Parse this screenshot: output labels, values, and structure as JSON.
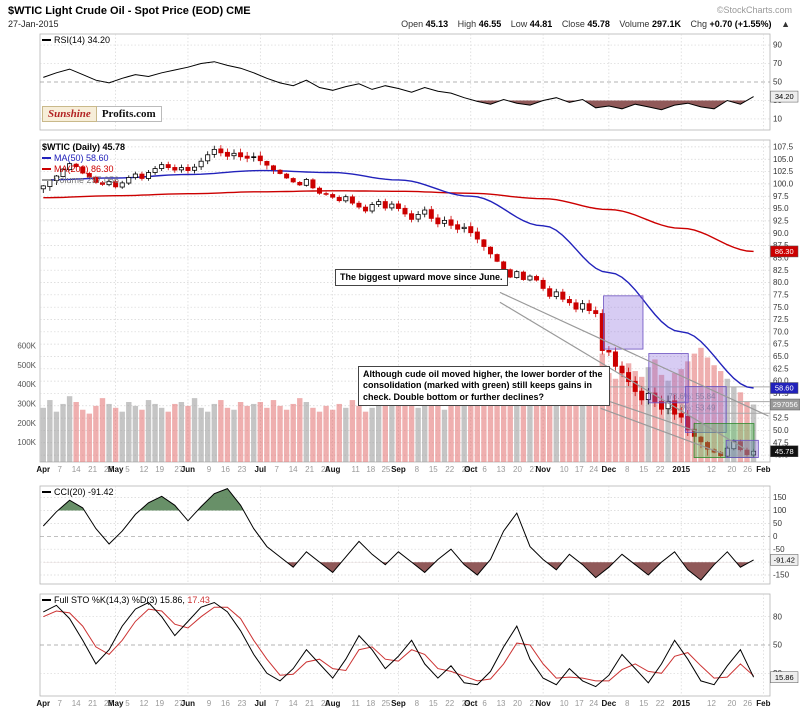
{
  "header": {
    "symbol_title": "$WTIC Light Crude Oil - Spot Price (EOD) CME",
    "copyright": "©StockCharts.com",
    "date": "27-Jan-2015",
    "quote": [
      {
        "label": "Open",
        "value": "45.13"
      },
      {
        "label": "High",
        "value": "46.55"
      },
      {
        "label": "Low",
        "value": "44.81"
      },
      {
        "label": "Close",
        "value": "45.78"
      },
      {
        "label": "Volume",
        "value": "297.1K"
      },
      {
        "label": "Chg",
        "value": "+0.70 (+1.55%)"
      }
    ],
    "chg_arrow": "▲"
  },
  "logo": {
    "line1": "Sunshine",
    "line2": "Profits.com"
  },
  "panels": {
    "rsi": {
      "legend": "RSI(14) 34.20",
      "last": "34.20"
    },
    "price": {
      "legend_symbol": "$WTIC (Daily) 45.78",
      "legend_ma50": "MA(50) 58.60",
      "legend_ma200": "MA(200) 86.30",
      "legend_volume": "Volume 297,056",
      "last": "45.78",
      "ma50_last": "58.60",
      "ma200_last": "86.30",
      "volume_last": "297056"
    },
    "cci": {
      "legend": "CCI(20) -91.42",
      "last": "-91.42"
    },
    "sto": {
      "legend": "Full STO %K(14,3) %D(3) 15.86,",
      "legend_d": "17.43",
      "last": "15.86"
    }
  },
  "annotations": {
    "box1": "The biggest upward move since June.",
    "box2": "Although cude oil moved higher, the lower border of the consolidation (marked with green) still keeps gains in check. Double bottom or further declines?"
  },
  "chart_data": {
    "type": "candlestick-multi-panel",
    "title": "$WTIC Light Crude Oil - Spot Price (EOD) CME",
    "x_slots": 111,
    "xticks": [
      [
        "Apr",
        0,
        1
      ],
      [
        "7",
        2.5,
        0
      ],
      [
        "14",
        5,
        0
      ],
      [
        "21",
        7.5,
        0
      ],
      [
        "28",
        9.9,
        0
      ],
      [
        "May",
        11,
        1
      ],
      [
        "5",
        12.8,
        0
      ],
      [
        "12",
        15.3,
        0
      ],
      [
        "19",
        17.7,
        0
      ],
      [
        "27",
        20.6,
        0
      ],
      [
        "Jun",
        22,
        1
      ],
      [
        "9",
        25.2,
        0
      ],
      [
        "16",
        27.7,
        0
      ],
      [
        "23",
        30.2,
        0
      ],
      [
        "Jul",
        33,
        1
      ],
      [
        "7",
        35.5,
        0
      ],
      [
        "14",
        38,
        0
      ],
      [
        "21",
        40.5,
        0
      ],
      [
        "28",
        42.9,
        0
      ],
      [
        "Aug",
        44,
        1
      ],
      [
        "11",
        47.5,
        0
      ],
      [
        "18",
        49.8,
        0
      ],
      [
        "25",
        52.1,
        0
      ],
      [
        "Sep",
        54,
        1
      ],
      [
        "8",
        56.8,
        0
      ],
      [
        "15",
        59.3,
        0
      ],
      [
        "22",
        61.8,
        0
      ],
      [
        "29",
        64.3,
        0
      ],
      [
        "Oct",
        65,
        1
      ],
      [
        "6",
        67.1,
        0
      ],
      [
        "13",
        69.6,
        0
      ],
      [
        "20",
        72.1,
        0
      ],
      [
        "27",
        74.6,
        0
      ],
      [
        "Nov",
        76,
        1
      ],
      [
        "10",
        79.2,
        0
      ],
      [
        "17",
        81.5,
        0
      ],
      [
        "24",
        83.7,
        0
      ],
      [
        "Dec",
        86,
        1
      ],
      [
        "8",
        88.8,
        0
      ],
      [
        "15",
        91.3,
        0
      ],
      [
        "22",
        93.8,
        0
      ],
      [
        "2015",
        97,
        1
      ],
      [
        "12",
        101.6,
        0
      ],
      [
        "20",
        104.7,
        0
      ],
      [
        "26",
        107.1,
        0
      ],
      [
        "Feb",
        109.5,
        1
      ]
    ],
    "price": {
      "ylim": [
        43.6,
        108.9
      ],
      "grid_min": 45,
      "grid_max": 107.5,
      "grid_step": 2.5,
      "first_open": 99.0,
      "closes": [
        99.6,
        100.8,
        101.6,
        103.0,
        104.1,
        103.5,
        102.2,
        101.4,
        100.3,
        99.9,
        100.5,
        99.4,
        100.2,
        101.3,
        102.0,
        101.1,
        102.3,
        103.1,
        103.9,
        103.3,
        102.8,
        103.3,
        102.7,
        103.4,
        104.6,
        105.9,
        107.0,
        106.3,
        105.6,
        106.2,
        105.5,
        105.2,
        105.5,
        104.7,
        103.8,
        102.9,
        102.1,
        101.2,
        100.4,
        99.8,
        100.9,
        99.2,
        98.1,
        97.9,
        97.3,
        96.6,
        97.4,
        96.1,
        95.3,
        94.5,
        95.8,
        96.4,
        95.1,
        95.9,
        95.0,
        93.9,
        92.8,
        93.8,
        94.7,
        93.0,
        91.9,
        92.6,
        91.6,
        90.8,
        91.2,
        90.1,
        88.8,
        87.3,
        85.8,
        84.3,
        82.7,
        81.1,
        82.2,
        80.6,
        81.3,
        80.5,
        78.8,
        77.2,
        78.1,
        76.6,
        75.9,
        74.6,
        75.7,
        74.3,
        73.7,
        66.2,
        65.9,
        63.0,
        61.7,
        59.9,
        57.9,
        56.2,
        57.5,
        55.8,
        54.3,
        55.9,
        53.3,
        52.7,
        50.1,
        48.8,
        47.7,
        46.2,
        45.6,
        44.9,
        46.4,
        47.8,
        46.1,
        45.1,
        45.78
      ],
      "ma50": {
        "idx": [
          0,
          11,
          22,
          33,
          44,
          54,
          65,
          76,
          86,
          97,
          108
        ],
        "values": [
          100.8,
          101.2,
          101.9,
          102.7,
          102.3,
          100.8,
          97.5,
          91.5,
          82.0,
          70.0,
          58.6
        ]
      },
      "ma200": {
        "idx": [
          0,
          11,
          22,
          33,
          44,
          54,
          65,
          76,
          86,
          97,
          108
        ],
        "values": [
          97.2,
          97.6,
          98.0,
          98.4,
          98.6,
          98.5,
          98.1,
          97.0,
          94.8,
          91.0,
          86.3
        ]
      }
    },
    "volume": {
      "axis_max_k": 620,
      "last_k": 297,
      "ticks_k": [
        600,
        500,
        400,
        300,
        200,
        100
      ],
      "values_k": [
        280,
        320,
        260,
        300,
        340,
        310,
        270,
        250,
        290,
        330,
        300,
        280,
        260,
        310,
        290,
        270,
        320,
        300,
        280,
        260,
        300,
        310,
        290,
        330,
        280,
        260,
        300,
        320,
        280,
        270,
        310,
        290,
        300,
        310,
        280,
        320,
        290,
        270,
        300,
        330,
        310,
        280,
        260,
        290,
        270,
        300,
        280,
        320,
        290,
        260,
        280,
        310,
        300,
        290,
        320,
        340,
        300,
        280,
        310,
        330,
        290,
        270,
        300,
        320,
        310,
        350,
        380,
        420,
        390,
        360,
        400,
        430,
        370,
        340,
        380,
        360,
        390,
        420,
        380,
        400,
        370,
        410,
        390,
        440,
        480,
        560,
        460,
        430,
        480,
        510,
        470,
        440,
        490,
        530,
        450,
        420,
        460,
        480,
        520,
        560,
        590,
        540,
        500,
        470,
        430,
        390,
        360,
        310,
        297
      ]
    },
    "rsi": {
      "step": 2,
      "gridlines": [
        90,
        70,
        50,
        30,
        10
      ],
      "fill_below": 30,
      "values": [
        55,
        60,
        64,
        58,
        52,
        49,
        54,
        58,
        56,
        60,
        63,
        66,
        70,
        72,
        68,
        65,
        60,
        54,
        49,
        46,
        52,
        44,
        41,
        45,
        48,
        42,
        46,
        43,
        39,
        44,
        40,
        38,
        33,
        29,
        26,
        31,
        27,
        25,
        30,
        33,
        28,
        31,
        22,
        24,
        21,
        26,
        23,
        20,
        25,
        27,
        23,
        21,
        30,
        26,
        34.2
      ]
    },
    "cci": {
      "step": 2,
      "gridlines": [
        150,
        100,
        50,
        0,
        -50,
        -100,
        -150
      ],
      "fill_above": 100,
      "fill_below": -100,
      "values": [
        40,
        95,
        140,
        110,
        30,
        -30,
        20,
        85,
        130,
        155,
        120,
        60,
        115,
        165,
        185,
        120,
        30,
        -40,
        -80,
        -120,
        -60,
        -100,
        -140,
        -80,
        -20,
        -70,
        -110,
        -60,
        -100,
        -140,
        -90,
        -50,
        -110,
        -150,
        -90,
        20,
        90,
        -40,
        -90,
        -130,
        -70,
        -110,
        -160,
        -120,
        -70,
        -110,
        -150,
        -100,
        -60,
        -130,
        -170,
        -110,
        -60,
        -120,
        -91.42
      ]
    },
    "sto": {
      "step": 2,
      "gridlines": [
        80,
        50,
        20
      ],
      "k": [
        85,
        92,
        78,
        55,
        30,
        45,
        70,
        88,
        95,
        80,
        60,
        75,
        90,
        95,
        85,
        65,
        40,
        20,
        12,
        25,
        45,
        30,
        15,
        35,
        60,
        45,
        25,
        38,
        55,
        30,
        15,
        28,
        10,
        8,
        22,
        48,
        70,
        35,
        15,
        8,
        25,
        12,
        6,
        18,
        40,
        25,
        10,
        30,
        55,
        35,
        12,
        8,
        28,
        45,
        15.86
      ],
      "d": [
        80,
        86,
        84,
        70,
        48,
        40,
        55,
        75,
        88,
        86,
        72,
        68,
        80,
        90,
        90,
        78,
        55,
        35,
        18,
        19,
        32,
        35,
        25,
        23,
        45,
        48,
        35,
        33,
        45,
        40,
        25,
        22,
        17,
        12,
        14,
        30,
        52,
        50,
        30,
        15,
        16,
        15,
        12,
        12,
        24,
        30,
        22,
        20,
        38,
        42,
        28,
        15,
        16,
        30,
        17.43
      ]
    },
    "boxes": [
      {
        "x0": 0.772,
        "x1": 0.826,
        "p0": 66.5,
        "p1": 77.3,
        "color": "purple"
      },
      {
        "x0": 0.834,
        "x1": 0.888,
        "p0": 55.6,
        "p1": 65.6,
        "color": "purple"
      },
      {
        "x0": 0.884,
        "x1": 0.94,
        "p0": 49.6,
        "p1": 58.9,
        "color": "purple"
      },
      {
        "x0": 0.896,
        "x1": 0.978,
        "p0": 44.5,
        "p1": 51.4,
        "color": "green"
      },
      {
        "x0": 0.94,
        "x1": 0.984,
        "p0": 44.5,
        "p1": 48.0,
        "color": "purple"
      }
    ],
    "lines": [
      {
        "x0": 0.63,
        "p0": 78.0,
        "x1": 0.998,
        "p1": 52.9
      },
      {
        "x0": 0.63,
        "p0": 76.0,
        "x1": 0.965,
        "p1": 46.3
      },
      {
        "x0": 0.768,
        "p0": 56.5,
        "x1": 0.9,
        "p1": 49.8
      },
      {
        "x0": 0.768,
        "p0": 54.5,
        "x1": 0.935,
        "p1": 45.3
      }
    ],
    "fib": [
      {
        "label": "100.0%: 58.84",
        "price": 58.84,
        "x0": 0.66
      },
      {
        "label": "78.6%: 55.84",
        "price": 55.84,
        "x0": 0.858
      },
      {
        "label": "61.8%: 53.49",
        "price": 53.49,
        "x0": 0.858
      }
    ],
    "colors": {
      "up": "#000000",
      "down": "#cc0000",
      "ma50": "#2222bb",
      "ma200": "#cc0000",
      "volume_up": "rgba(150,150,150,0.55)",
      "volume_down": "rgba(225,110,110,0.55)",
      "fill_neg": "#7d3c3c",
      "fill_pos": "#4e7d4e",
      "purple_fill": "rgba(140,110,220,0.35)",
      "purple_stroke": "#6a4fc0",
      "green_fill": "rgba(90,190,90,0.4)",
      "green_stroke": "#2e8b2e",
      "sto_d": "#cc3333"
    }
  }
}
